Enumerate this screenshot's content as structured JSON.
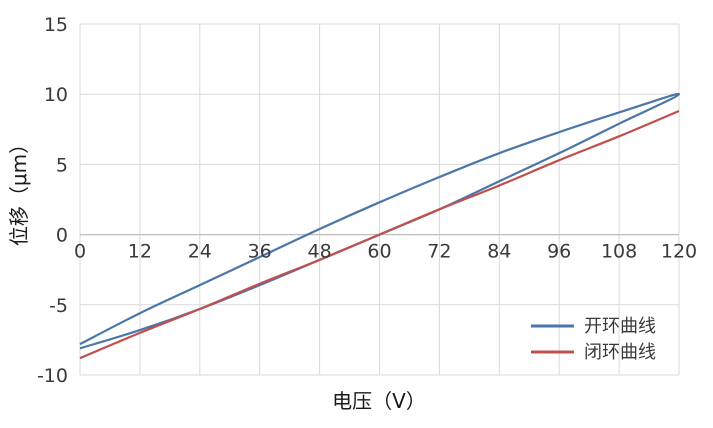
{
  "chart_data": {
    "type": "line",
    "xlabel": "电压（V）",
    "ylabel": "位移（μm）",
    "xlim": [
      0,
      120
    ],
    "ylim": [
      -10,
      15
    ],
    "x_ticks": [
      "0",
      "12",
      "24",
      "36",
      "48",
      "60",
      "72",
      "84",
      "96",
      "108",
      "120"
    ],
    "y_ticks": [
      "15",
      "10",
      "5",
      "0",
      "-5",
      "-10"
    ],
    "grid": true,
    "legend_position": "bottom-right",
    "colors": {
      "open_loop": "#4a76a8",
      "closed_loop": "#c0504d",
      "grid": "#d9d9d9"
    },
    "series": [
      {
        "name": "开环曲线",
        "x": [
          0,
          12,
          24,
          36,
          48,
          60,
          72,
          84,
          96,
          108,
          120,
          108,
          96,
          84,
          72,
          60,
          48,
          36,
          24,
          12,
          0
        ],
        "y": [
          -7.8,
          -5.6,
          -3.6,
          -1.6,
          0.4,
          2.3,
          4.1,
          5.8,
          7.3,
          8.7,
          10.0,
          7.9,
          5.8,
          3.8,
          1.8,
          0.0,
          -1.8,
          -3.6,
          -5.3,
          -6.8,
          -8.1
        ]
      },
      {
        "name": "闭环曲线",
        "x": [
          0,
          12,
          24,
          36,
          48,
          60,
          72,
          84,
          96,
          108,
          120
        ],
        "y": [
          -8.8,
          -7.0,
          -5.3,
          -3.5,
          -1.8,
          0.0,
          1.8,
          3.5,
          5.3,
          7.0,
          8.8
        ]
      }
    ]
  }
}
